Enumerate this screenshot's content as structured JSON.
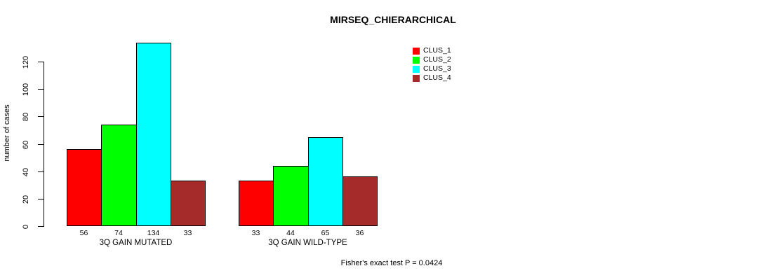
{
  "page": {
    "background": "#FFFFFF",
    "text_color": "#000000"
  },
  "chart_data": {
    "type": "bar",
    "title": "MIRSEQ_CHIERARCHICAL",
    "ylabel": "number of cases",
    "xlabel": "",
    "ylim": [
      0,
      134
    ],
    "yticks": [
      0,
      20,
      40,
      60,
      80,
      100,
      120
    ],
    "grid": false,
    "categories": [
      "3Q GAIN MUTATED",
      "3Q GAIN WILD-TYPE"
    ],
    "series": [
      {
        "name": "CLUS_1",
        "color": "#FF0000",
        "values": [
          56,
          33
        ]
      },
      {
        "name": "CLUS_2",
        "color": "#00FF00",
        "values": [
          74,
          44
        ]
      },
      {
        "name": "CLUS_3",
        "color": "#00FFFF",
        "values": [
          134,
          65
        ]
      },
      {
        "name": "CLUS_4",
        "color": "#A52A2A",
        "values": [
          33,
          36
        ]
      }
    ],
    "bar_value_labels": {
      "3Q GAIN MUTATED": [
        56,
        74,
        134,
        33
      ],
      "3Q GAIN WILD-TYPE": [
        33,
        44,
        65,
        36
      ]
    },
    "legend": {
      "position": "top-right",
      "entries": [
        "CLUS_1",
        "CLUS_2",
        "CLUS_3",
        "CLUS_4"
      ]
    },
    "footnote": "Fisher's exact test P = 0.0424"
  }
}
